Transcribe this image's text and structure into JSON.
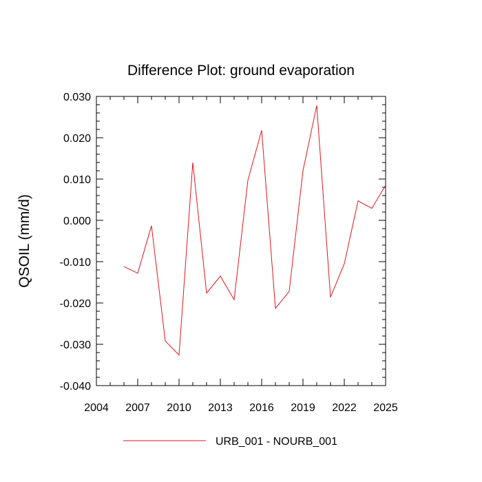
{
  "chart_data": {
    "type": "line",
    "title": "Difference Plot: ground evaporation",
    "xlabel": "",
    "ylabel": "QSOIL  (mm/d)",
    "xlim": [
      2004,
      2025
    ],
    "ylim": [
      -0.04,
      0.03
    ],
    "x_ticks": [
      2004,
      2007,
      2010,
      2013,
      2016,
      2019,
      2022,
      2025
    ],
    "x_tick_labels": [
      "2004",
      "2007",
      "2010",
      "2013",
      "2016",
      "2019",
      "2022",
      "2025"
    ],
    "y_ticks": [
      -0.04,
      -0.03,
      -0.02,
      -0.01,
      0.0,
      0.01,
      0.02,
      0.03
    ],
    "y_tick_labels": [
      "-0.040",
      "-0.030",
      "-0.020",
      "-0.010",
      "0.000",
      "0.010",
      "0.020",
      "0.030"
    ],
    "x_minor_step": 1,
    "y_minor_step": 0.002,
    "grid": false,
    "legend_position": "bottom",
    "series": [
      {
        "name": "URB_001 - NOURB_001",
        "color": "#e0141a",
        "x": [
          2006,
          2007,
          2008,
          2009,
          2010,
          2011,
          2012,
          2013,
          2014,
          2015,
          2016,
          2017,
          2018,
          2019,
          2020,
          2021,
          2022,
          2023,
          2024,
          2025
        ],
        "y": [
          -0.0112,
          -0.0128,
          -0.0013,
          -0.0292,
          -0.0326,
          0.014,
          -0.0176,
          -0.0135,
          -0.0192,
          0.0097,
          0.0218,
          -0.0213,
          -0.0172,
          0.012,
          0.0278,
          -0.0186,
          -0.0105,
          0.0047,
          0.0029,
          0.0085
        ]
      }
    ]
  }
}
